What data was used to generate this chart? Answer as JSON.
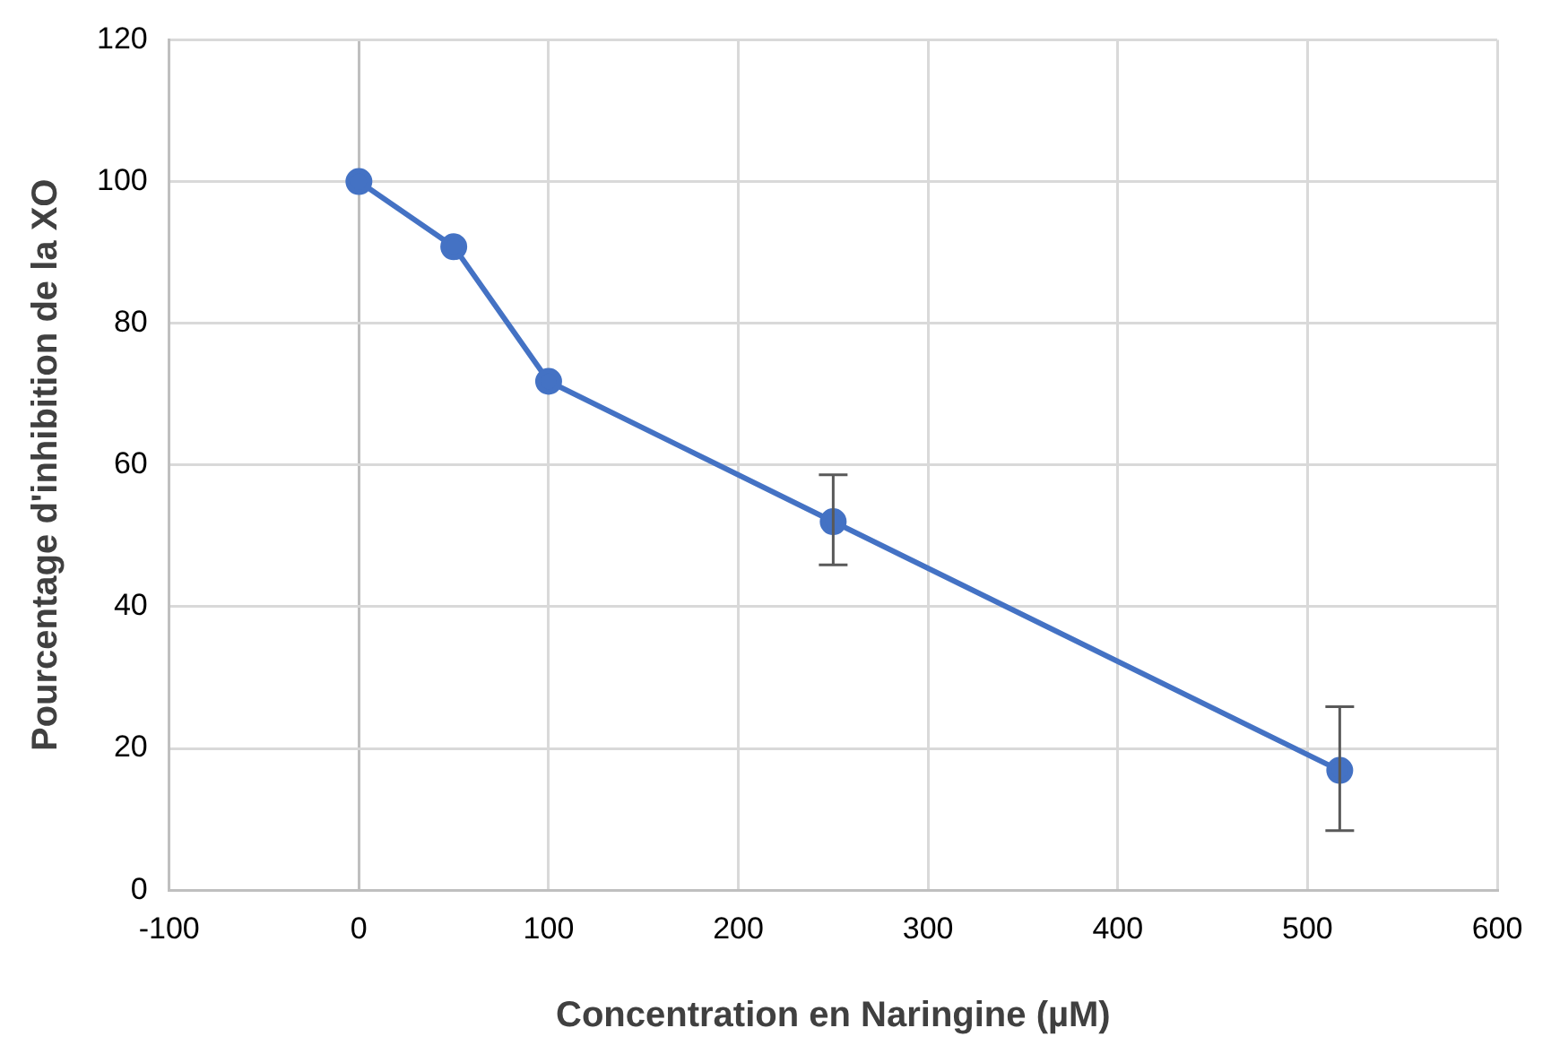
{
  "chart_data": {
    "type": "line",
    "xlabel": "Concentration en Naringine (µM)",
    "ylabel": "Pourcentage d'inhibition de la XO",
    "x": [
      0,
      50,
      100,
      250,
      517
    ],
    "series": [
      {
        "color": "#4472c4",
        "values": [
          100,
          90.8,
          71.8,
          52,
          16.9
        ],
        "errors": [
          null,
          null,
          null,
          [
            45.9,
            58.6
          ],
          [
            8.4,
            25.9
          ]
        ]
      }
    ],
    "xlim": [
      -100,
      600
    ],
    "xticks": [
      -100,
      0,
      100,
      200,
      300,
      400,
      500,
      600
    ],
    "ylim": [
      0,
      120
    ],
    "yticks": [
      0,
      20,
      40,
      60,
      80,
      100,
      120
    ],
    "grid": true,
    "marker": "circle",
    "line_style": "solid"
  }
}
